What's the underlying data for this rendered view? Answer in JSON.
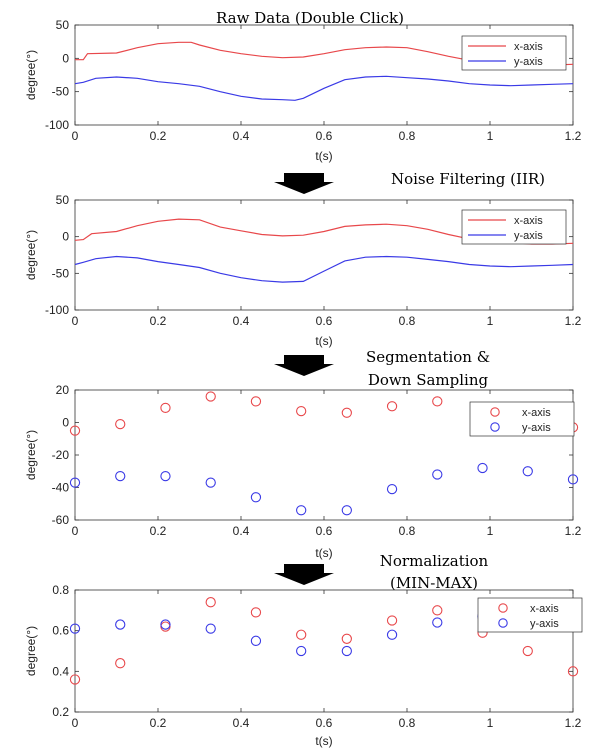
{
  "stages": [
    {
      "title": "Raw Data (Double Click)"
    },
    {
      "title": "Noise Filtering (IIR)"
    },
    {
      "title": "Segmentation &",
      "title2": "Down Sampling"
    },
    {
      "title": "Normalization",
      "title2": "(MIN-MAX)"
    }
  ],
  "colors": {
    "x_axis": "#e8484b",
    "y_axis": "#3a3ae6",
    "arrow": "#000000"
  },
  "chart_data": [
    {
      "type": "line",
      "xlabel": "t(s)",
      "ylabel": "degree(°)",
      "xlim": [
        0,
        1.2
      ],
      "ylim": [
        -100,
        50
      ],
      "xticks": [
        0,
        0.2,
        0.4,
        0.6,
        0.8,
        1,
        1.2
      ],
      "yticks": [
        -100,
        -50,
        0,
        50
      ],
      "grid": false,
      "legend": "top-right",
      "series": [
        {
          "name": "x-axis",
          "color": "#e8484b",
          "x": [
            0,
            0.02,
            0.03,
            0.1,
            0.15,
            0.2,
            0.25,
            0.28,
            0.3,
            0.35,
            0.4,
            0.45,
            0.5,
            0.55,
            0.6,
            0.65,
            0.7,
            0.75,
            0.8,
            0.85,
            0.9,
            0.95,
            1.0,
            1.05,
            1.1,
            1.15,
            1.2
          ],
          "y": [
            -2,
            -2,
            7,
            8,
            16,
            22,
            24,
            24,
            20,
            12,
            7,
            3,
            1,
            2,
            7,
            13,
            16,
            17,
            16,
            10,
            3,
            -3,
            -5,
            -8,
            -10,
            -10,
            -9
          ]
        },
        {
          "name": "y-axis",
          "color": "#3a3ae6",
          "x": [
            0,
            0.02,
            0.05,
            0.1,
            0.15,
            0.2,
            0.25,
            0.3,
            0.35,
            0.4,
            0.45,
            0.5,
            0.53,
            0.55,
            0.6,
            0.65,
            0.7,
            0.75,
            0.8,
            0.85,
            0.9,
            0.95,
            1.0,
            1.05,
            1.1,
            1.15,
            1.2
          ],
          "y": [
            -38,
            -36,
            -30,
            -28,
            -30,
            -35,
            -38,
            -42,
            -50,
            -57,
            -61,
            -62,
            -63,
            -60,
            -45,
            -32,
            -28,
            -27,
            -29,
            -31,
            -34,
            -38,
            -40,
            -41,
            -40,
            -39,
            -38
          ]
        }
      ]
    },
    {
      "type": "line",
      "xlabel": "t(s)",
      "ylabel": "degree(°)",
      "xlim": [
        0,
        1.2
      ],
      "ylim": [
        -100,
        50
      ],
      "xticks": [
        0,
        0.2,
        0.4,
        0.6,
        0.8,
        1,
        1.2
      ],
      "yticks": [
        -100,
        -50,
        0,
        50
      ],
      "grid": false,
      "legend": "top-right",
      "series": [
        {
          "name": "x-axis",
          "color": "#e8484b",
          "x": [
            0,
            0.02,
            0.04,
            0.1,
            0.15,
            0.2,
            0.25,
            0.3,
            0.35,
            0.4,
            0.45,
            0.5,
            0.55,
            0.6,
            0.65,
            0.7,
            0.75,
            0.8,
            0.85,
            0.9,
            0.95,
            1.0,
            1.05,
            1.1,
            1.15,
            1.2
          ],
          "y": [
            -5,
            -4,
            4,
            7,
            15,
            21,
            24,
            23,
            13,
            8,
            3,
            1,
            2,
            7,
            14,
            16,
            17,
            15,
            10,
            3,
            -3,
            -5,
            -8,
            -10,
            -10,
            -9
          ]
        },
        {
          "name": "y-axis",
          "color": "#3a3ae6",
          "x": [
            0,
            0.02,
            0.05,
            0.1,
            0.15,
            0.2,
            0.25,
            0.3,
            0.35,
            0.4,
            0.45,
            0.5,
            0.55,
            0.6,
            0.65,
            0.7,
            0.75,
            0.8,
            0.85,
            0.9,
            0.95,
            1.0,
            1.05,
            1.1,
            1.15,
            1.2
          ],
          "y": [
            -38,
            -35,
            -30,
            -27,
            -29,
            -34,
            -38,
            -42,
            -50,
            -56,
            -60,
            -62,
            -61,
            -47,
            -33,
            -28,
            -27,
            -28,
            -31,
            -34,
            -38,
            -40,
            -41,
            -40,
            -39,
            -38
          ]
        }
      ]
    },
    {
      "type": "scatter",
      "xlabel": "t(s)",
      "ylabel": "degree(°)",
      "xlim": [
        0,
        1.2
      ],
      "ylim": [
        -60,
        20
      ],
      "xticks": [
        0,
        0.2,
        0.4,
        0.6,
        0.8,
        1,
        1.2
      ],
      "yticks": [
        -60,
        -40,
        -20,
        0,
        20
      ],
      "grid": false,
      "legend": "top-right",
      "series": [
        {
          "name": "x-axis",
          "color": "#e8484b",
          "x": [
            0,
            0.109,
            0.218,
            0.327,
            0.436,
            0.545,
            0.655,
            0.764,
            0.873,
            0.982,
            1.091,
            1.2
          ],
          "y": [
            -5,
            -1,
            9,
            16,
            13,
            7,
            6,
            10,
            13,
            5,
            2,
            -3
          ]
        },
        {
          "name": "y-axis",
          "color": "#3a3ae6",
          "x": [
            0,
            0.109,
            0.218,
            0.327,
            0.436,
            0.545,
            0.655,
            0.764,
            0.873,
            0.982,
            1.091,
            1.2
          ],
          "y": [
            -37,
            -33,
            -33,
            -37,
            -46,
            -54,
            -54,
            -41,
            -32,
            -28,
            -30,
            -35
          ]
        }
      ]
    },
    {
      "type": "scatter",
      "xlabel": "t(s)",
      "ylabel": "degree(°)",
      "xlim": [
        0,
        1.2
      ],
      "ylim": [
        0.2,
        0.8
      ],
      "xticks": [
        0,
        0.2,
        0.4,
        0.6,
        0.8,
        1,
        1.2
      ],
      "yticks": [
        0.2,
        0.4,
        0.6,
        0.8
      ],
      "grid": false,
      "legend": "top-right",
      "series": [
        {
          "name": "x-axis",
          "color": "#e8484b",
          "x": [
            0,
            0.109,
            0.218,
            0.327,
            0.436,
            0.545,
            0.655,
            0.764,
            0.873,
            0.982,
            1.091,
            1.2
          ],
          "y": [
            0.36,
            0.44,
            0.62,
            0.74,
            0.69,
            0.58,
            0.56,
            0.65,
            0.7,
            0.59,
            0.5,
            0.4
          ]
        },
        {
          "name": "y-axis",
          "color": "#3a3ae6",
          "x": [
            0,
            0.109,
            0.218,
            0.327,
            0.436,
            0.545,
            0.655,
            0.764,
            0.873,
            0.982,
            1.091,
            1.2
          ],
          "y": [
            0.61,
            0.63,
            0.63,
            0.61,
            0.55,
            0.5,
            0.5,
            0.58,
            0.64,
            0.67,
            0.66,
            0.62
          ]
        }
      ]
    }
  ]
}
